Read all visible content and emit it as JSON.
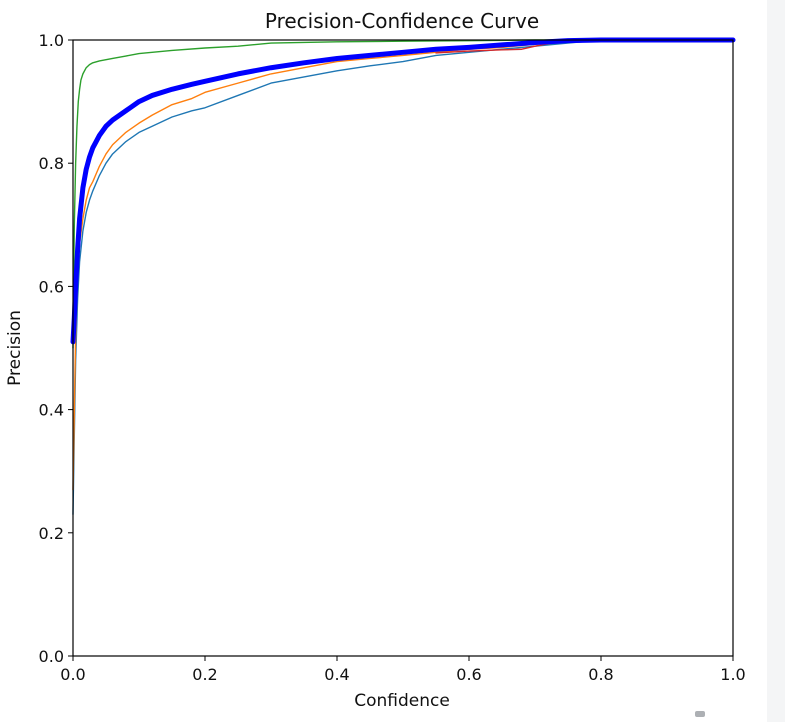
{
  "chart_data": {
    "type": "line",
    "title": "Precision-Confidence Curve",
    "xlabel": "Confidence",
    "ylabel": "Precision",
    "xlim": [
      0.0,
      1.0
    ],
    "ylim": [
      0.0,
      1.0
    ],
    "xticks": [
      "0.0",
      "0.2",
      "0.4",
      "0.6",
      "0.8",
      "1.0"
    ],
    "yticks": [
      "0.0",
      "0.2",
      "0.4",
      "0.6",
      "0.8",
      "1.0"
    ],
    "grid": false,
    "legend": "none",
    "series": [
      {
        "color": "#1f77b4",
        "stroke_role": "thin",
        "x": [
          0.0,
          0.002,
          0.004,
          0.007,
          0.01,
          0.015,
          0.02,
          0.025,
          0.03,
          0.04,
          0.05,
          0.06,
          0.08,
          0.1,
          0.12,
          0.15,
          0.18,
          0.2,
          0.25,
          0.3,
          0.35,
          0.4,
          0.45,
          0.5,
          0.55,
          0.6,
          0.65,
          0.7,
          0.75,
          0.8,
          0.9,
          1.0
        ],
        "y": [
          0.23,
          0.36,
          0.48,
          0.58,
          0.64,
          0.69,
          0.72,
          0.74,
          0.755,
          0.78,
          0.8,
          0.815,
          0.835,
          0.85,
          0.86,
          0.875,
          0.885,
          0.89,
          0.91,
          0.93,
          0.94,
          0.95,
          0.958,
          0.965,
          0.975,
          0.98,
          0.985,
          0.99,
          0.995,
          1.0,
          1.0,
          1.0
        ]
      },
      {
        "color": "#ff7f0e",
        "stroke_role": "thin",
        "x": [
          0.0,
          0.002,
          0.004,
          0.007,
          0.01,
          0.015,
          0.02,
          0.025,
          0.03,
          0.04,
          0.05,
          0.06,
          0.08,
          0.1,
          0.12,
          0.15,
          0.18,
          0.2,
          0.25,
          0.3,
          0.35,
          0.4,
          0.45,
          0.5,
          0.55,
          0.6,
          0.65,
          0.7,
          0.75,
          0.8,
          0.9,
          1.0
        ],
        "y": [
          0.27,
          0.4,
          0.52,
          0.62,
          0.67,
          0.71,
          0.74,
          0.76,
          0.77,
          0.795,
          0.815,
          0.83,
          0.85,
          0.865,
          0.878,
          0.895,
          0.905,
          0.915,
          0.93,
          0.945,
          0.955,
          0.965,
          0.97,
          0.975,
          0.98,
          0.985,
          0.988,
          0.993,
          0.997,
          1.0,
          1.0,
          1.0
        ]
      },
      {
        "color": "#2ca02c",
        "stroke_role": "thin",
        "x": [
          0.0,
          0.002,
          0.004,
          0.006,
          0.008,
          0.01,
          0.012,
          0.015,
          0.02,
          0.025,
          0.03,
          0.04,
          0.05,
          0.06,
          0.08,
          0.1,
          0.15,
          0.2,
          0.25,
          0.3,
          0.4,
          0.5,
          0.6,
          0.7,
          0.8,
          0.9,
          1.0
        ],
        "y": [
          0.5,
          0.7,
          0.8,
          0.86,
          0.9,
          0.92,
          0.935,
          0.945,
          0.955,
          0.96,
          0.963,
          0.966,
          0.968,
          0.97,
          0.974,
          0.978,
          0.983,
          0.987,
          0.99,
          0.995,
          0.997,
          0.998,
          0.999,
          1.0,
          1.0,
          1.0,
          1.0
        ]
      },
      {
        "color": "#d62728",
        "stroke_role": "thin",
        "x": [
          0.55,
          0.6,
          0.65,
          0.68,
          0.7,
          0.72,
          0.75,
          0.78
        ],
        "y": [
          0.979,
          0.982,
          0.984,
          0.985,
          0.99,
          0.994,
          0.997,
          1.0
        ]
      },
      {
        "color": "#0000ff",
        "stroke_role": "thick",
        "x": [
          0.0,
          0.002,
          0.004,
          0.007,
          0.01,
          0.015,
          0.02,
          0.025,
          0.03,
          0.035,
          0.04,
          0.05,
          0.06,
          0.08,
          0.1,
          0.12,
          0.15,
          0.18,
          0.2,
          0.25,
          0.3,
          0.35,
          0.4,
          0.45,
          0.5,
          0.55,
          0.6,
          0.65,
          0.7,
          0.75,
          0.8,
          0.85,
          0.9,
          1.0
        ],
        "y": [
          0.51,
          0.55,
          0.6,
          0.66,
          0.71,
          0.76,
          0.79,
          0.81,
          0.825,
          0.835,
          0.845,
          0.86,
          0.87,
          0.885,
          0.9,
          0.91,
          0.92,
          0.928,
          0.933,
          0.945,
          0.955,
          0.963,
          0.97,
          0.975,
          0.98,
          0.985,
          0.988,
          0.992,
          0.996,
          0.999,
          1.0,
          1.0,
          1.0,
          1.0
        ]
      }
    ]
  }
}
